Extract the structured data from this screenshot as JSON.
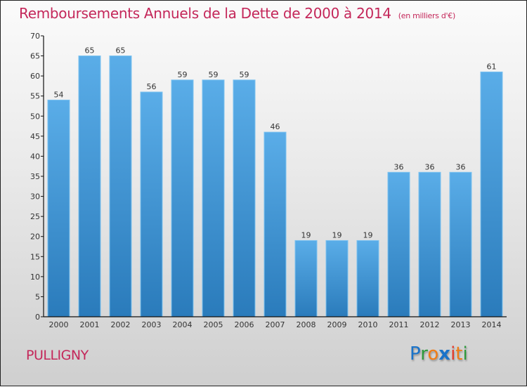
{
  "header": {
    "title": "Remboursements Annuels de la Dette de 2000 à 2014",
    "subtitle": "(en milliers d'€)"
  },
  "footer": {
    "town": "PULLIGNY",
    "logo": {
      "letters": [
        "P",
        "r",
        "o",
        "x",
        "i",
        "t",
        "i"
      ],
      "colors": [
        "#1a73c9",
        "#2e9a3c",
        "#f07d16",
        "#1a73c9",
        "#e53b2a",
        "#f07d16",
        "#2e9a3c"
      ]
    }
  },
  "colors": {
    "accent": "#c4275a",
    "bar_top": "#5aade8",
    "bar_bottom": "#2a7bbb",
    "bar_edge": "#7cc2f0",
    "axis": "#111111",
    "label": "#333333"
  },
  "chart_data": {
    "type": "bar",
    "title": "Remboursements Annuels de la Dette de 2000 à 2014",
    "subtitle": "(en milliers d'€)",
    "xlabel": "",
    "ylabel": "",
    "categories": [
      "2000",
      "2001",
      "2002",
      "2003",
      "2004",
      "2005",
      "2006",
      "2007",
      "2008",
      "2009",
      "2010",
      "2011",
      "2012",
      "2013",
      "2014"
    ],
    "values": [
      54,
      65,
      65,
      56,
      59,
      59,
      59,
      46,
      19,
      19,
      19,
      36,
      36,
      36,
      61
    ],
    "ylim": [
      0,
      70
    ],
    "yticks": [
      0,
      5,
      10,
      15,
      20,
      25,
      30,
      35,
      40,
      45,
      50,
      55,
      60,
      65,
      70
    ],
    "grid": false,
    "legend": "none",
    "data_labels": true
  }
}
